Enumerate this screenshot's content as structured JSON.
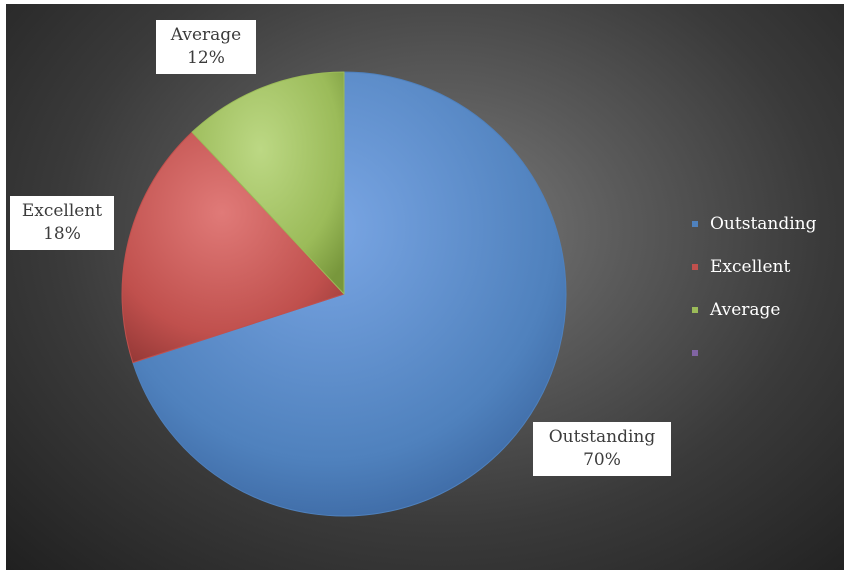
{
  "chart_data": {
    "type": "pie",
    "title": "",
    "categories": [
      "Outstanding",
      "Excellent",
      "Average",
      ""
    ],
    "values": [
      70,
      18,
      12,
      0
    ],
    "value_labels": [
      "70%",
      "18%",
      "12%",
      ""
    ],
    "colors": [
      "#4f81bd",
      "#c0504d",
      "#9bbb59",
      "#8064a2"
    ],
    "legend_position": "right",
    "background": "#3a3a3a",
    "start_angle_deg": 0,
    "direction": "clockwise"
  }
}
